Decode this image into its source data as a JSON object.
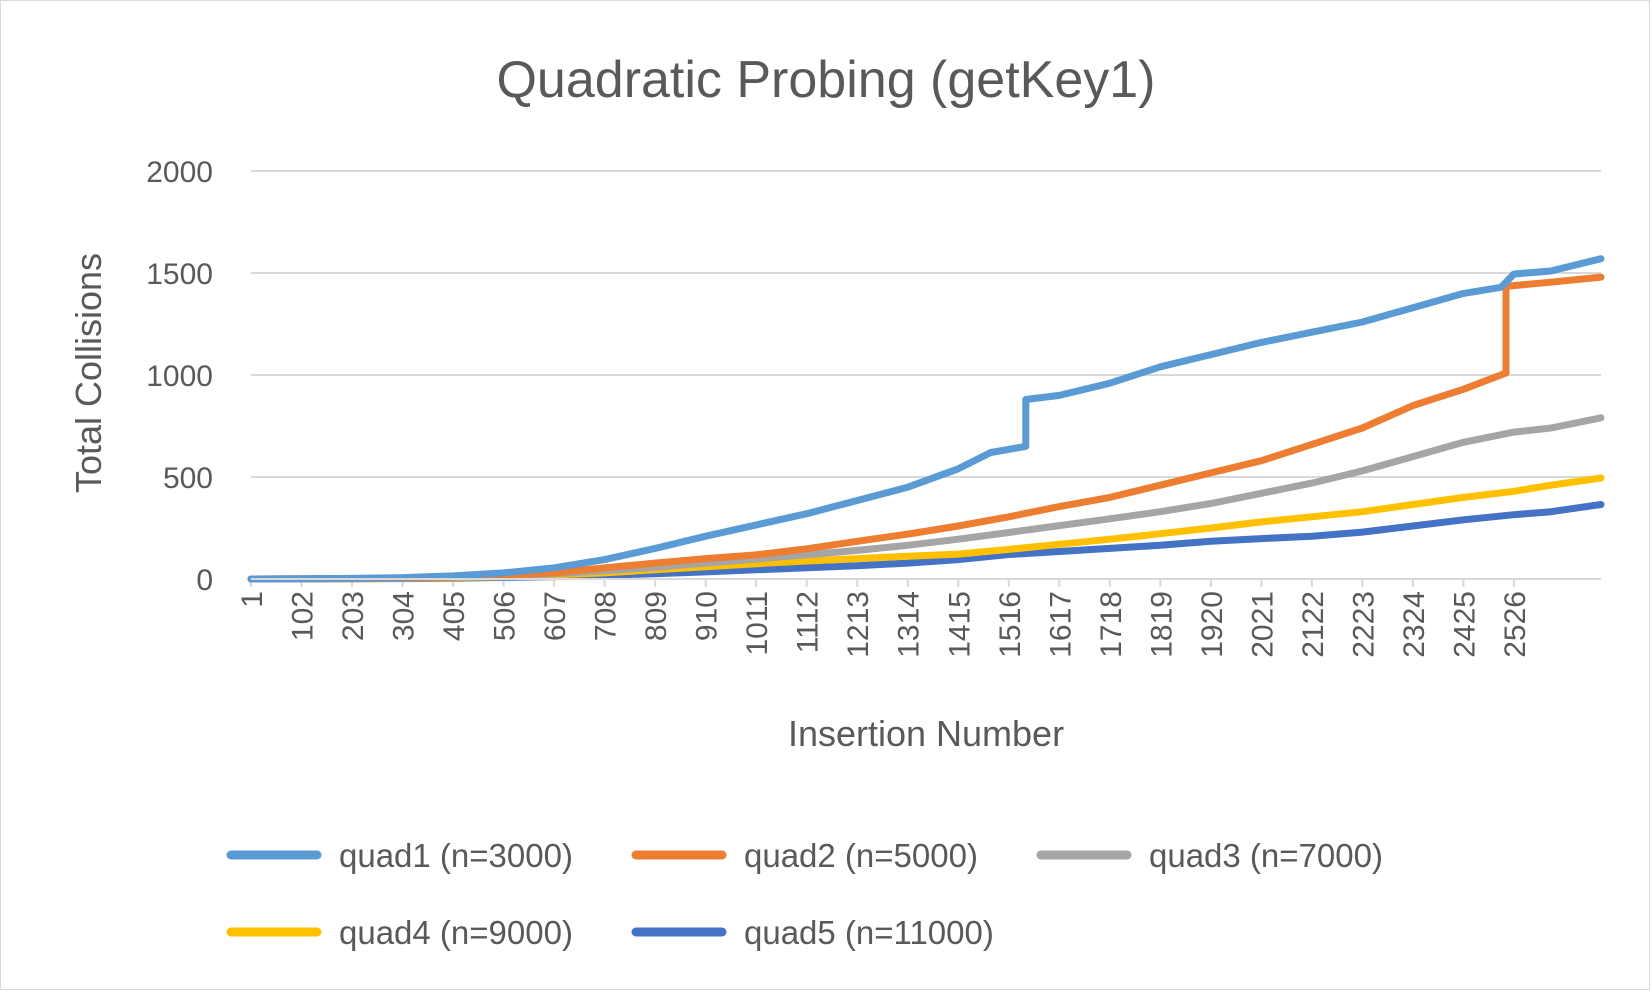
{
  "chart_data": {
    "type": "line",
    "title": "Quadratic Probing (getKey1)",
    "xlabel": "Insertion Number",
    "ylabel": "Total Collisions",
    "x_range": [
      1,
      2700
    ],
    "ylim": [
      0,
      2000
    ],
    "y_ticks": [
      "0",
      "500",
      "1000",
      "1500",
      "2000"
    ],
    "x_ticks": [
      {
        "value": 1,
        "label": "1"
      },
      {
        "value": 102,
        "label": "102"
      },
      {
        "value": 203,
        "label": "203"
      },
      {
        "value": 304,
        "label": "304"
      },
      {
        "value": 405,
        "label": "405"
      },
      {
        "value": 506,
        "label": "506"
      },
      {
        "value": 607,
        "label": "607"
      },
      {
        "value": 708,
        "label": "708"
      },
      {
        "value": 809,
        "label": "809"
      },
      {
        "value": 910,
        "label": "910"
      },
      {
        "value": 1011,
        "label": "1011"
      },
      {
        "value": 1112,
        "label": "1112"
      },
      {
        "value": 1213,
        "label": "1213"
      },
      {
        "value": 1314,
        "label": "1314"
      },
      {
        "value": 1415,
        "label": "1415"
      },
      {
        "value": 1516,
        "label": "1516"
      },
      {
        "value": 1617,
        "label": "1617"
      },
      {
        "value": 1718,
        "label": "1718"
      },
      {
        "value": 1819,
        "label": "1819"
      },
      {
        "value": 1920,
        "label": "1920"
      },
      {
        "value": 2021,
        "label": "2021"
      },
      {
        "value": 2122,
        "label": "2122"
      },
      {
        "value": 2223,
        "label": "2223"
      },
      {
        "value": 2324,
        "label": "2324"
      },
      {
        "value": 2425,
        "label": "2425"
      },
      {
        "value": 2526,
        "label": "2526"
      }
    ],
    "grid": true,
    "legend_position": "bottom",
    "series": [
      {
        "name": "quad1 (n=3000)",
        "color": "#5b9bd5",
        "points": [
          [
            1,
            0
          ],
          [
            102,
            1
          ],
          [
            203,
            3
          ],
          [
            304,
            7
          ],
          [
            405,
            15
          ],
          [
            506,
            30
          ],
          [
            607,
            55
          ],
          [
            708,
            95
          ],
          [
            809,
            150
          ],
          [
            910,
            210
          ],
          [
            1011,
            265
          ],
          [
            1112,
            320
          ],
          [
            1213,
            385
          ],
          [
            1314,
            450
          ],
          [
            1415,
            540
          ],
          [
            1480,
            620
          ],
          [
            1550,
            650
          ],
          [
            1550,
            880
          ],
          [
            1617,
            900
          ],
          [
            1718,
            960
          ],
          [
            1819,
            1040
          ],
          [
            1920,
            1100
          ],
          [
            2021,
            1160
          ],
          [
            2122,
            1210
          ],
          [
            2223,
            1260
          ],
          [
            2324,
            1330
          ],
          [
            2425,
            1400
          ],
          [
            2500,
            1430
          ],
          [
            2526,
            1495
          ],
          [
            2600,
            1510
          ],
          [
            2700,
            1570
          ]
        ]
      },
      {
        "name": "quad2 (n=5000)",
        "color": "#ed7d31",
        "points": [
          [
            1,
            0
          ],
          [
            102,
            1
          ],
          [
            203,
            2
          ],
          [
            304,
            4
          ],
          [
            405,
            10
          ],
          [
            506,
            18
          ],
          [
            607,
            30
          ],
          [
            708,
            55
          ],
          [
            809,
            78
          ],
          [
            910,
            100
          ],
          [
            1011,
            118
          ],
          [
            1112,
            148
          ],
          [
            1213,
            185
          ],
          [
            1314,
            220
          ],
          [
            1415,
            260
          ],
          [
            1516,
            305
          ],
          [
            1617,
            355
          ],
          [
            1718,
            400
          ],
          [
            1819,
            460
          ],
          [
            1920,
            520
          ],
          [
            2021,
            580
          ],
          [
            2122,
            660
          ],
          [
            2223,
            740
          ],
          [
            2324,
            850
          ],
          [
            2425,
            930
          ],
          [
            2510,
            1010
          ],
          [
            2510,
            1435
          ],
          [
            2600,
            1455
          ],
          [
            2700,
            1480
          ]
        ]
      },
      {
        "name": "quad3 (n=7000)",
        "color": "#a5a5a5",
        "points": [
          [
            1,
            0
          ],
          [
            102,
            1
          ],
          [
            203,
            2
          ],
          [
            304,
            3
          ],
          [
            405,
            8
          ],
          [
            506,
            14
          ],
          [
            607,
            25
          ],
          [
            708,
            40
          ],
          [
            809,
            58
          ],
          [
            910,
            78
          ],
          [
            1011,
            98
          ],
          [
            1112,
            118
          ],
          [
            1213,
            140
          ],
          [
            1314,
            165
          ],
          [
            1415,
            195
          ],
          [
            1516,
            228
          ],
          [
            1617,
            262
          ],
          [
            1718,
            295
          ],
          [
            1819,
            330
          ],
          [
            1920,
            370
          ],
          [
            2021,
            420
          ],
          [
            2122,
            470
          ],
          [
            2223,
            530
          ],
          [
            2324,
            600
          ],
          [
            2425,
            670
          ],
          [
            2526,
            720
          ],
          [
            2600,
            740
          ],
          [
            2700,
            790
          ]
        ]
      },
      {
        "name": "quad4 (n=9000)",
        "color": "#ffc000",
        "points": [
          [
            1,
            0
          ],
          [
            102,
            0
          ],
          [
            203,
            1
          ],
          [
            304,
            3
          ],
          [
            405,
            6
          ],
          [
            506,
            12
          ],
          [
            607,
            20
          ],
          [
            708,
            30
          ],
          [
            809,
            45
          ],
          [
            910,
            60
          ],
          [
            1011,
            75
          ],
          [
            1112,
            88
          ],
          [
            1213,
            100
          ],
          [
            1314,
            112
          ],
          [
            1415,
            122
          ],
          [
            1516,
            145
          ],
          [
            1617,
            170
          ],
          [
            1718,
            195
          ],
          [
            1819,
            222
          ],
          [
            1920,
            250
          ],
          [
            2021,
            280
          ],
          [
            2122,
            305
          ],
          [
            2223,
            330
          ],
          [
            2324,
            365
          ],
          [
            2425,
            400
          ],
          [
            2526,
            430
          ],
          [
            2600,
            460
          ],
          [
            2700,
            495
          ]
        ]
      },
      {
        "name": "quad5 (n=11000)",
        "color": "#4472c4",
        "points": [
          [
            1,
            0
          ],
          [
            102,
            0
          ],
          [
            203,
            1
          ],
          [
            304,
            2
          ],
          [
            405,
            4
          ],
          [
            506,
            8
          ],
          [
            607,
            12
          ],
          [
            708,
            18
          ],
          [
            809,
            26
          ],
          [
            910,
            35
          ],
          [
            1011,
            45
          ],
          [
            1112,
            55
          ],
          [
            1213,
            65
          ],
          [
            1314,
            78
          ],
          [
            1415,
            95
          ],
          [
            1516,
            120
          ],
          [
            1617,
            135
          ],
          [
            1718,
            150
          ],
          [
            1819,
            165
          ],
          [
            1920,
            185
          ],
          [
            2021,
            198
          ],
          [
            2122,
            210
          ],
          [
            2223,
            230
          ],
          [
            2324,
            260
          ],
          [
            2425,
            290
          ],
          [
            2526,
            315
          ],
          [
            2600,
            330
          ],
          [
            2700,
            365
          ]
        ]
      }
    ]
  }
}
